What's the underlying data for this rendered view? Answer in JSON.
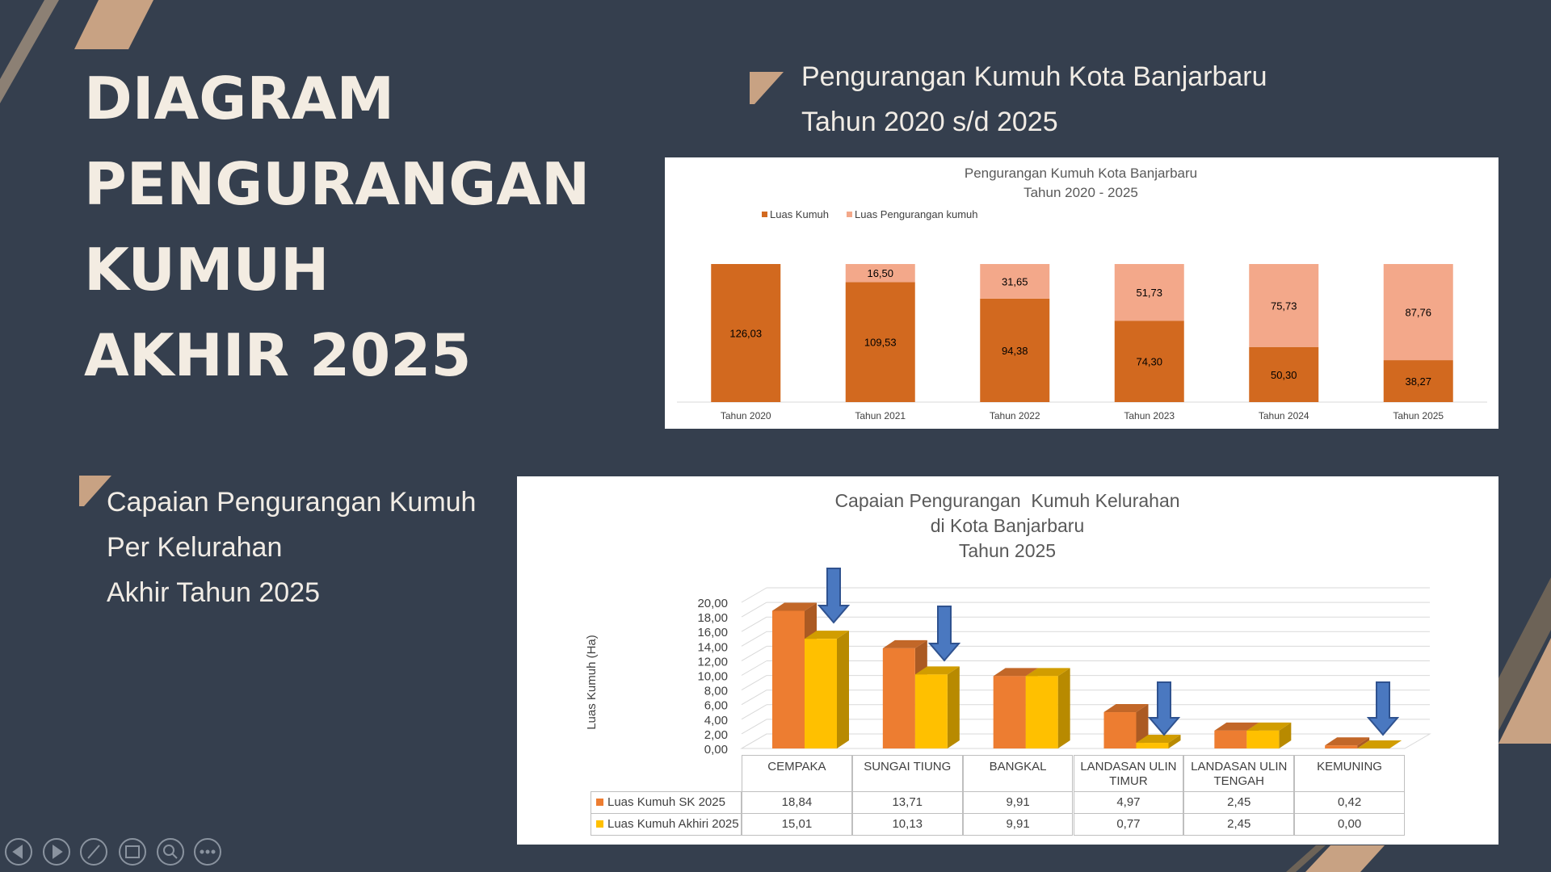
{
  "slide": {
    "title": [
      "DIAGRAM",
      "PENGURANGAN",
      "KUMUH",
      "AKHIR 2025"
    ],
    "section_1": [
      "Pengurangan Kumuh Kota Banjarbaru",
      "Tahun 2020 s/d 2025"
    ],
    "section_2": [
      "Capaian Pengurangan Kumuh",
      "Per Kelurahan",
      "Akhir Tahun 2025"
    ]
  },
  "chart_data": [
    {
      "type": "stacked_bar",
      "title": [
        "Pengurangan Kumuh Kota Banjarbaru",
        "Tahun 2020 - 2025"
      ],
      "categories": [
        "Tahun 2020",
        "Tahun 2021",
        "Tahun 2022",
        "Tahun 2023",
        "Tahun 2024",
        "Tahun 2025"
      ],
      "series": [
        {
          "name": "Luas Kumuh",
          "color": "#d2691f",
          "values": [
            126.03,
            109.53,
            94.38,
            74.3,
            50.3,
            38.27
          ],
          "value_labels": [
            "126,03",
            "109,53",
            "94,38",
            "74,30",
            "50,30",
            "38,27"
          ]
        },
        {
          "name": "Luas Pengurangan kumuh",
          "color": "#f3a88a",
          "values": [
            null,
            16.5,
            31.65,
            51.73,
            75.73,
            87.76
          ],
          "value_labels": [
            null,
            "16,50",
            "31,65",
            "51,73",
            "75,73",
            "87,76"
          ]
        }
      ],
      "legend": "top-left"
    },
    {
      "type": "bar_3d",
      "title": [
        "Capaian Pengurangan  Kumuh Kelurahan",
        "di Kota Banjarbaru",
        "Tahun 2025"
      ],
      "ylabel": "Luas Kumuh (Ha)",
      "categories": [
        "CEMPAKA",
        "SUNGAI TIUNG",
        "BANGKAL",
        "LANDASAN ULIN TIMUR",
        "LANDASAN ULIN TENGAH",
        "KEMUNING"
      ],
      "series": [
        {
          "name": "Luas Kumuh SK 2025",
          "color": "#ed7d31",
          "values": [
            18.84,
            13.71,
            9.91,
            4.97,
            2.45,
            0.42
          ],
          "value_labels": [
            "18,84",
            "13,71",
            "9,91",
            "4,97",
            "2,45",
            "0,42"
          ]
        },
        {
          "name": "Luas Kumuh Akhiri 2025",
          "color": "#ffc000",
          "values": [
            15.01,
            10.13,
            9.91,
            0.77,
            2.45,
            0.0
          ],
          "value_labels": [
            "15,01",
            "10,13",
            "9,91",
            "0,77",
            "2,45",
            "0,00"
          ]
        }
      ],
      "ylim": [
        0,
        20
      ],
      "yticks": [
        {
          "value": 0,
          "label": "0,00"
        },
        {
          "value": 2,
          "label": "2,00"
        },
        {
          "value": 4,
          "label": "4,00"
        },
        {
          "value": 6,
          "label": "6,00"
        },
        {
          "value": 8,
          "label": "8,00"
        },
        {
          "value": 10,
          "label": "10,00"
        },
        {
          "value": 12,
          "label": "12,00"
        },
        {
          "value": 14,
          "label": "14,00"
        },
        {
          "value": 16,
          "label": "16,00"
        },
        {
          "value": 18,
          "label": "18,00"
        },
        {
          "value": 20,
          "label": "20,00"
        }
      ],
      "grid": true,
      "data_table": true
    }
  ]
}
